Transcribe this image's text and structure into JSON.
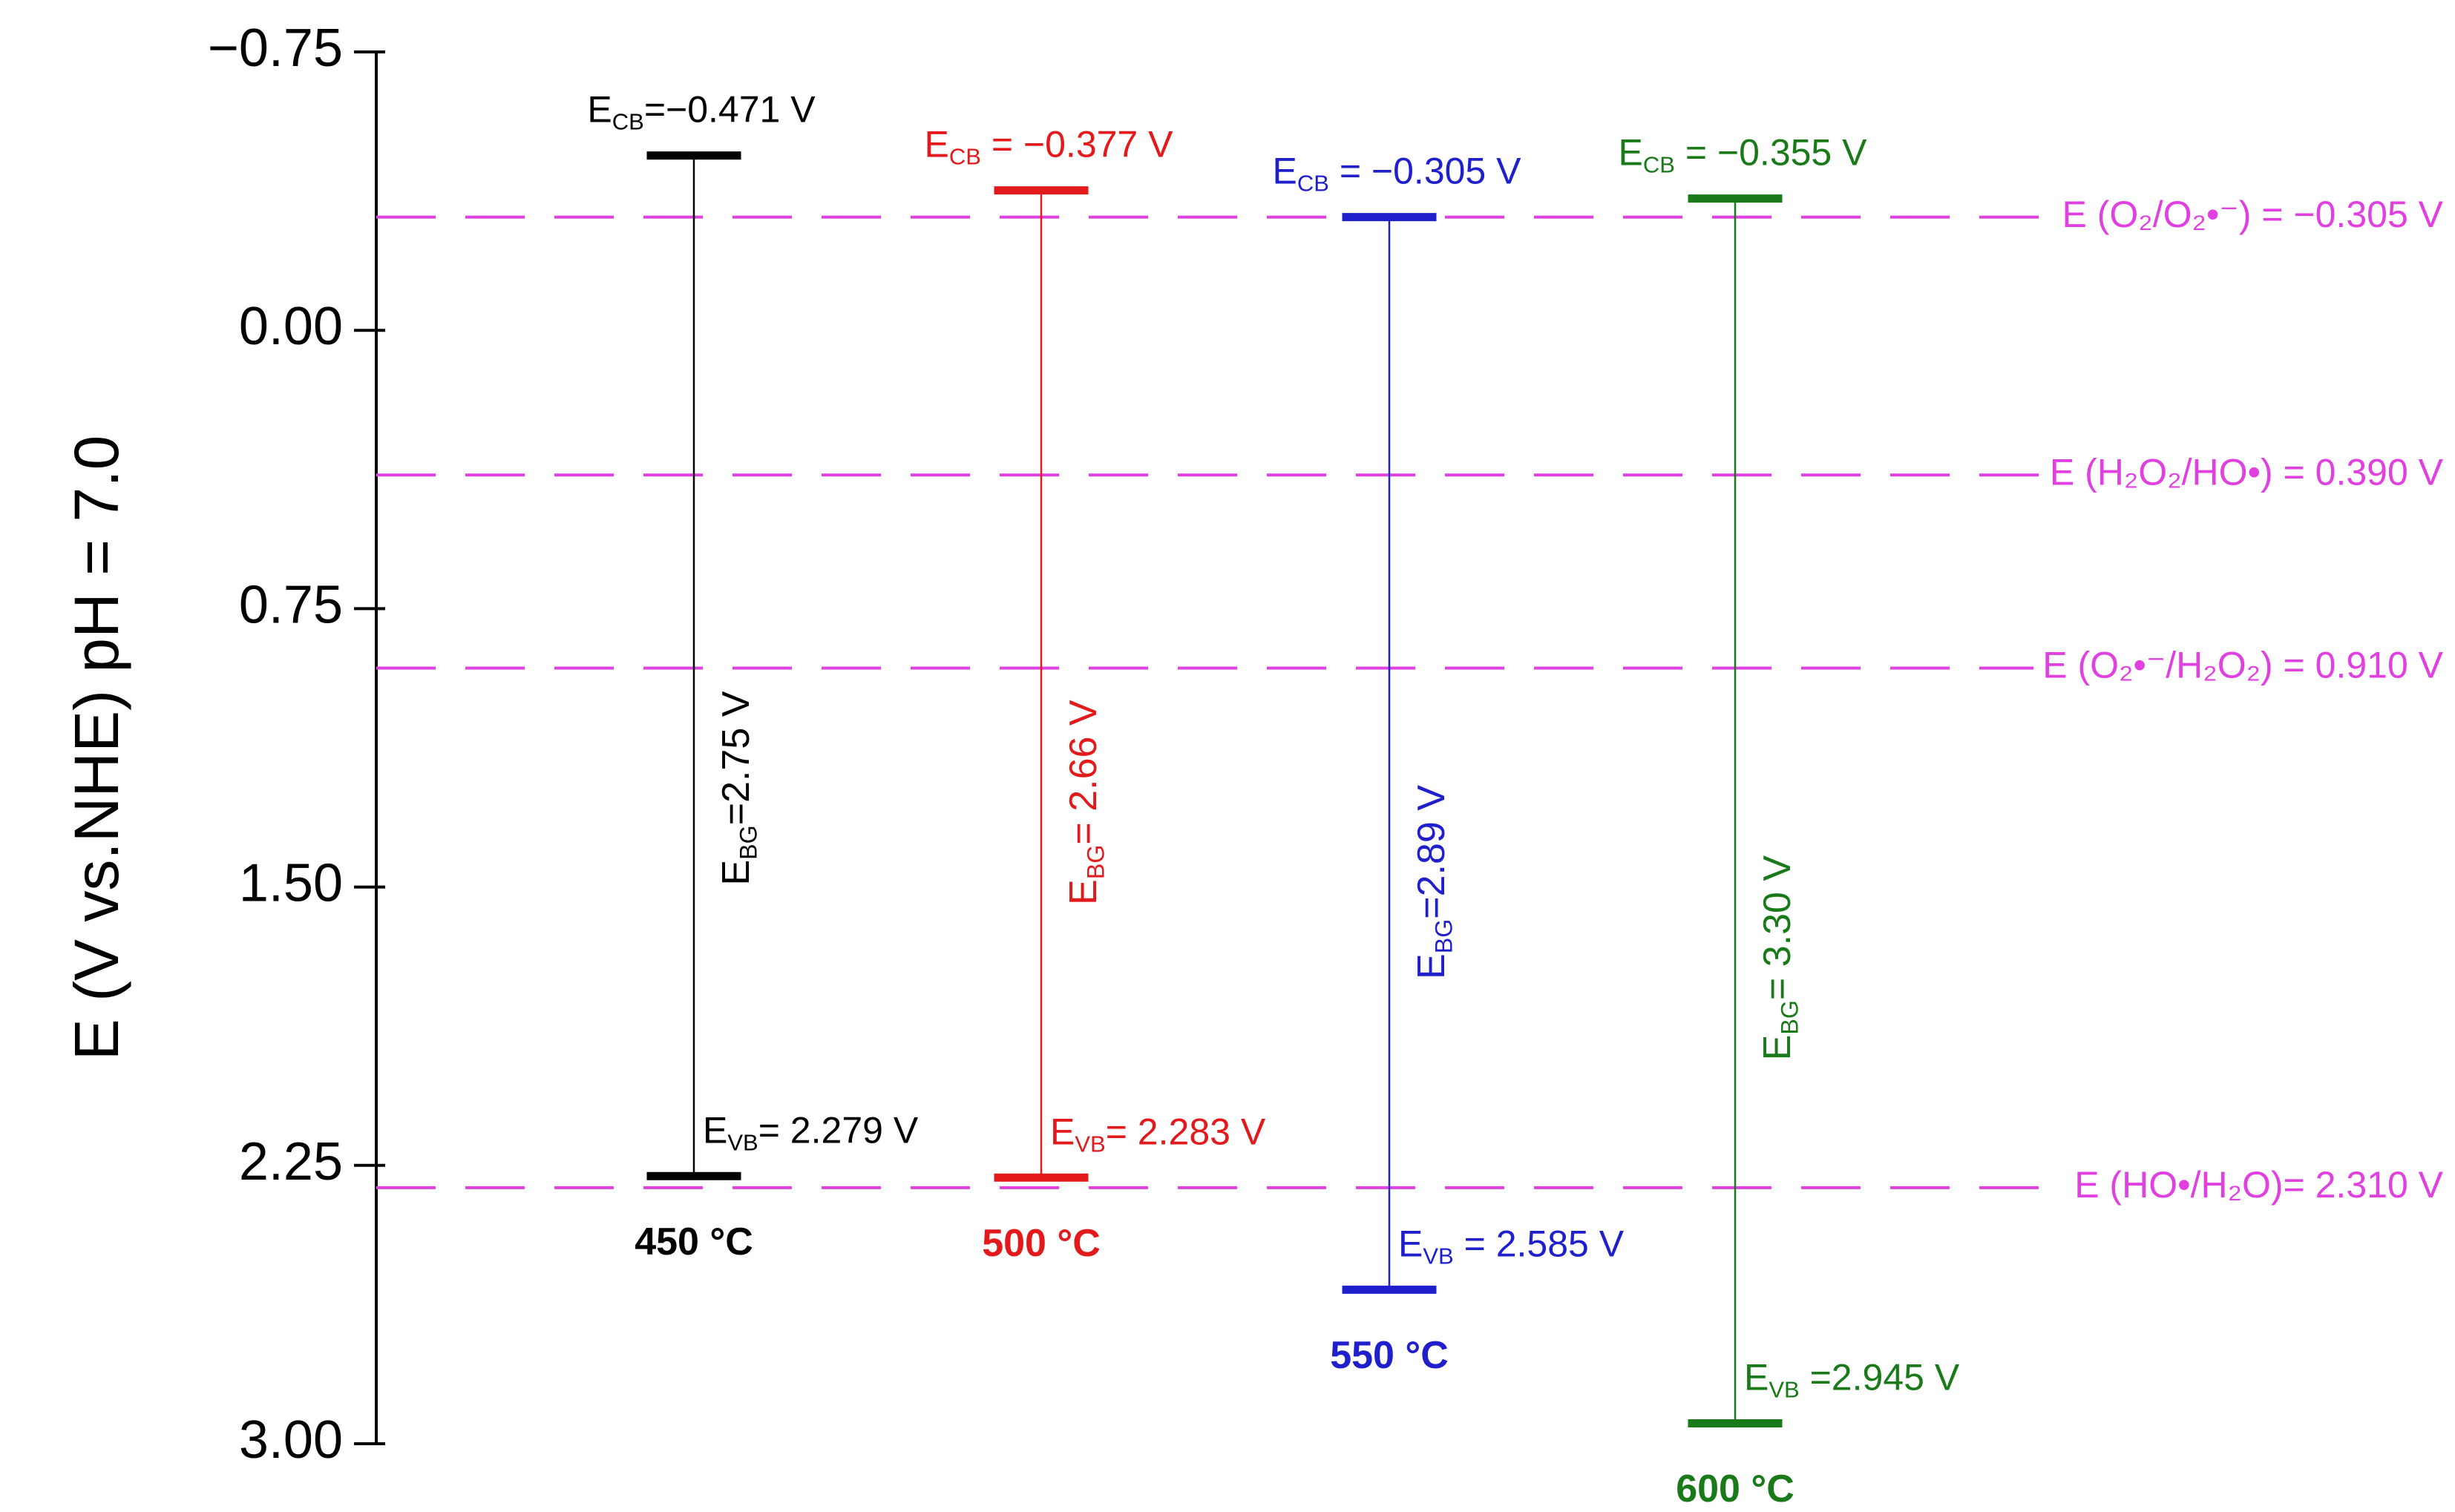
{
  "chart_data": {
    "type": "band",
    "ylabel": "E (V vs.NHE) pH = 7.0",
    "ylim": [
      -0.75,
      3.0
    ],
    "yticks": [
      {
        "value": -0.75,
        "label": "−0.75"
      },
      {
        "value": 0,
        "label": "0.00"
      },
      {
        "value": 0.75,
        "label": "0.75"
      },
      {
        "value": 1.5,
        "label": "1.50"
      },
      {
        "value": 2.25,
        "label": "2.25"
      },
      {
        "value": 3,
        "label": "3.00"
      }
    ],
    "symbols": {
      "cb": {
        "main": "E",
        "sub": "CB"
      },
      "vb": {
        "main": "E",
        "sub": "VB"
      },
      "bg": {
        "main": "E",
        "sub": "BG"
      }
    },
    "series": [
      {
        "name": "450 °C",
        "color": "#000000",
        "values": [
          -0.471,
          2.279
        ],
        "value_labels": [
          "=−0.471 V",
          "= 2.279 V"
        ],
        "bandgap": 2.75,
        "bandgap_label": "=2.75 V"
      },
      {
        "name": "500 °C",
        "color": "#e31a1c",
        "values": [
          -0.377,
          2.283
        ],
        "value_labels": [
          " = −0.377 V",
          "= 2.283 V"
        ],
        "bandgap": 2.66,
        "bandgap_label": "= 2.66 V"
      },
      {
        "name": "550 °C",
        "color": "#1f1fcc",
        "values": [
          -0.305,
          2.585
        ],
        "value_labels": [
          " = −0.305 V",
          " = 2.585 V"
        ],
        "bandgap": 2.89,
        "bandgap_label": "=2.89 V"
      },
      {
        "name": "600 °C",
        "color": "#1a7a1a",
        "values": [
          -0.355,
          2.945
        ],
        "value_labels": [
          " = −0.355 V",
          " =2.945 V"
        ],
        "bandgap": 3.3,
        "bandgap_label": "= 3.30 V"
      }
    ],
    "reference_color": "#e040e0",
    "references": [
      {
        "value": -0.305,
        "label": "E (O₂/O₂•⁻) = −0.305 V"
      },
      {
        "value": 0.39,
        "label": "E (H₂O₂/HO•) = 0.390 V"
      },
      {
        "value": 0.91,
        "label": "E (O₂•⁻/H₂O₂) = 0.910 V"
      },
      {
        "value": 2.31,
        "label": "E (HO•/H₂O)= 2.310 V"
      }
    ]
  }
}
